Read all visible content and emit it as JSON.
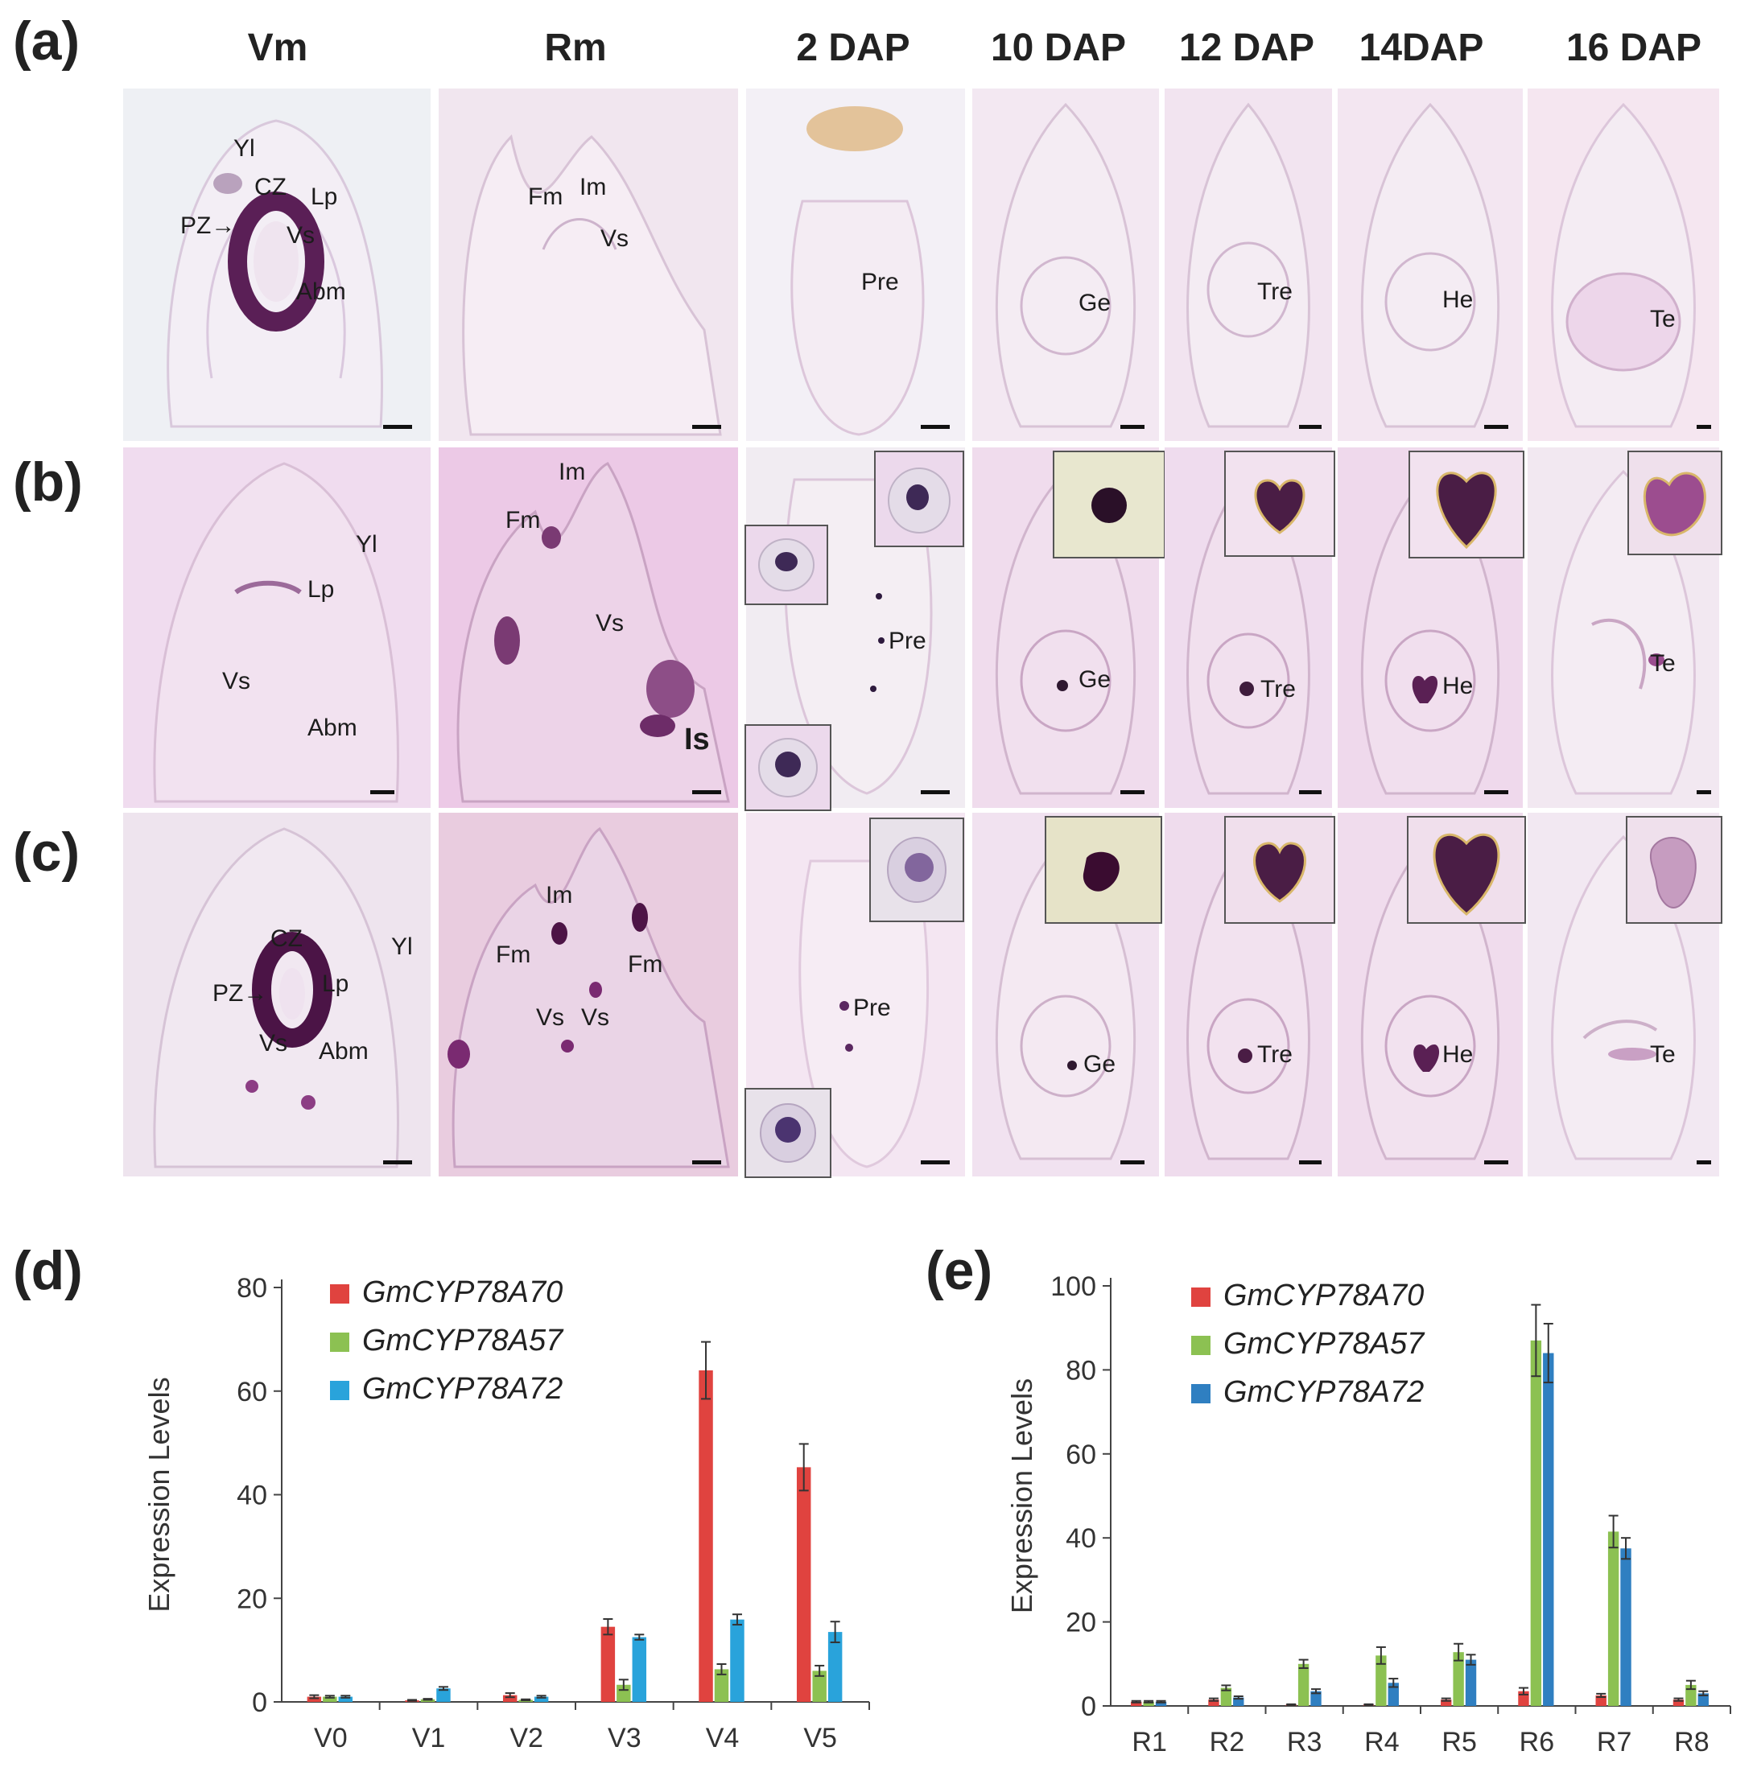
{
  "figure": {
    "panel_letters": [
      "(a)",
      "(b)",
      "(c)",
      "(d)",
      "(e)"
    ],
    "column_headers": [
      "Vm",
      "Rm",
      "2 DAP",
      "10 DAP",
      "12 DAP",
      "14DAP",
      "16 DAP"
    ],
    "labels": {
      "a": {
        "vm": [
          "Yl",
          "CZ",
          "Lp",
          "PZ→",
          "Vs",
          "Abm"
        ],
        "rm": [
          "Fm",
          "Im",
          "Vs"
        ],
        "dap2": "Pre",
        "dap10": "Ge",
        "dap12": "Tre",
        "dap14": "He",
        "dap16": "Te"
      },
      "b": {
        "vm": [
          "Yl",
          "Lp",
          "Vs",
          "Abm"
        ],
        "rm": [
          "Im",
          "Fm",
          "Vs",
          "Is"
        ],
        "dap2": "Pre",
        "dap10": "Ge",
        "dap12": "Tre",
        "dap14": "He",
        "dap16": "Te"
      },
      "c": {
        "vm": [
          "CZ",
          "Yl",
          "PZ→",
          "Lp",
          "Vs",
          "Abm"
        ],
        "rm": [
          "Im",
          "Fm",
          "Fm",
          "Vs",
          "Vs"
        ],
        "dap2": "Pre",
        "dap10": "Ge",
        "dap12": "Tre",
        "dap14": "He",
        "dap16": "Te"
      }
    }
  },
  "chart_data": [
    {
      "type": "bar",
      "panel": "(d)",
      "categories": [
        "V0",
        "V1",
        "V2",
        "V3",
        "V4",
        "V5"
      ],
      "series": [
        {
          "name": "GmCYP78A70",
          "color": "#e0433f",
          "values": [
            1.0,
            0.3,
            1.3,
            14.5,
            64.0,
            45.3
          ],
          "errors": [
            0.3,
            0.1,
            0.4,
            1.5,
            5.5,
            4.5
          ]
        },
        {
          "name": "GmCYP78A57",
          "color": "#8cc152",
          "values": [
            1.0,
            0.5,
            0.4,
            3.3,
            6.3,
            6.0
          ],
          "errors": [
            0.2,
            0.1,
            0.1,
            1.0,
            1.0,
            1.0
          ]
        },
        {
          "name": "GmCYP78A72",
          "color": "#29a3db",
          "values": [
            1.0,
            2.6,
            1.0,
            12.5,
            15.9,
            13.5
          ],
          "errors": [
            0.2,
            0.3,
            0.2,
            0.5,
            1.0,
            2.0
          ]
        }
      ],
      "ylabel": "Expression Levels",
      "xlabel": "",
      "ylim": [
        0,
        80
      ],
      "yticks": [
        0,
        20,
        40,
        60,
        80
      ],
      "legend": "top-left"
    },
    {
      "type": "bar",
      "panel": "(e)",
      "categories": [
        "R1",
        "R2",
        "R3",
        "R4",
        "R5",
        "R6",
        "R7",
        "R8"
      ],
      "series": [
        {
          "name": "GmCYP78A70",
          "color": "#e0433f",
          "values": [
            1.0,
            1.5,
            0.3,
            0.3,
            1.5,
            3.5,
            2.5,
            1.5
          ],
          "errors": [
            0.2,
            0.3,
            0.1,
            0.1,
            0.3,
            0.8,
            0.4,
            0.3
          ]
        },
        {
          "name": "GmCYP78A57",
          "color": "#8cc152",
          "values": [
            1.0,
            4.3,
            10.0,
            12.0,
            12.8,
            87.0,
            41.5,
            5.0
          ],
          "errors": [
            0.2,
            0.6,
            1.0,
            2.0,
            2.0,
            8.5,
            3.8,
            1.0
          ]
        },
        {
          "name": "GmCYP78A72",
          "color": "#2f7fc1",
          "values": [
            1.0,
            2.0,
            3.5,
            5.5,
            11.0,
            84.0,
            37.5,
            3.0
          ],
          "errors": [
            0.2,
            0.3,
            0.5,
            1.0,
            1.2,
            7.0,
            2.5,
            0.5
          ]
        }
      ],
      "ylabel": "Expression Levels",
      "xlabel": "",
      "ylim": [
        0,
        100
      ],
      "yticks": [
        0,
        20,
        40,
        60,
        80,
        100
      ],
      "legend": "top-left"
    }
  ]
}
